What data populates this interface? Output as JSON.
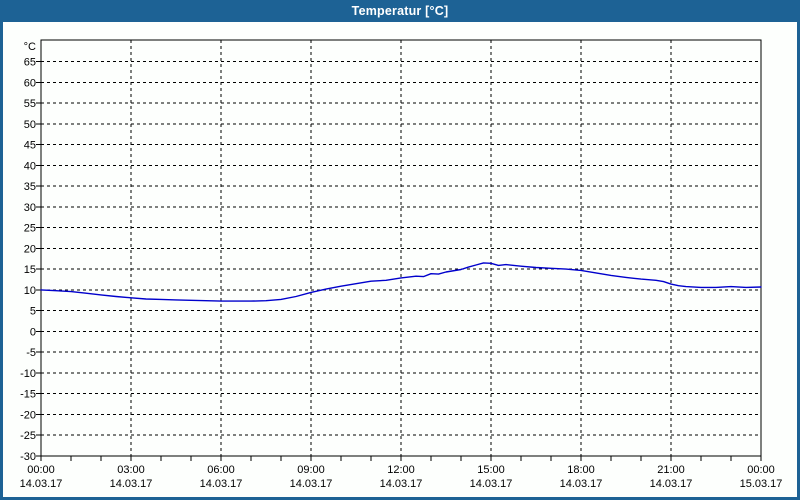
{
  "window": {
    "title": "Temperatur [°C]"
  },
  "colors": {
    "titlebar": "#1d6295",
    "window_border": "#1d6295",
    "title_text": "#ffffff",
    "background": "#fdfffd",
    "axis": "#000000",
    "grid": "#000000",
    "line": "#0000cc"
  },
  "chart_data": {
    "type": "line",
    "title": "Temperatur [°C]",
    "unit": "°C",
    "grid": true,
    "legend": "none",
    "x_axis": {
      "range_hours": [
        0,
        24
      ],
      "tick_hours": [
        0,
        3,
        6,
        9,
        12,
        15,
        18,
        21,
        24
      ],
      "minor_tick_every_hours": 1,
      "tick_labels": [
        {
          "time": "00:00",
          "date": "14.03.17"
        },
        {
          "time": "03:00",
          "date": "14.03.17"
        },
        {
          "time": "06:00",
          "date": "14.03.17"
        },
        {
          "time": "09:00",
          "date": "14.03.17"
        },
        {
          "time": "12:00",
          "date": "14.03.17"
        },
        {
          "time": "15:00",
          "date": "14.03.17"
        },
        {
          "time": "18:00",
          "date": "14.03.17"
        },
        {
          "time": "21:00",
          "date": "14.03.17"
        },
        {
          "time": "00:00",
          "date": "15.03.17"
        }
      ]
    },
    "y_axis": {
      "unit_label": "°C",
      "range": [
        -30,
        70
      ],
      "tick_step": 5,
      "tick_values": [
        65,
        60,
        55,
        50,
        45,
        40,
        35,
        30,
        25,
        20,
        15,
        10,
        5,
        0,
        -5,
        -10,
        -15,
        -20,
        -25,
        -30
      ]
    },
    "series": [
      {
        "name": "Temperatur",
        "color": "#0000cc",
        "points": [
          [
            0,
            10.0
          ],
          [
            0.5,
            9.8
          ],
          [
            1,
            9.6
          ],
          [
            1.5,
            9.2
          ],
          [
            2,
            8.8
          ],
          [
            2.5,
            8.4
          ],
          [
            3,
            8.1
          ],
          [
            3.5,
            7.8
          ],
          [
            4,
            7.7
          ],
          [
            4.5,
            7.6
          ],
          [
            5,
            7.5
          ],
          [
            5.5,
            7.4
          ],
          [
            6,
            7.3
          ],
          [
            6.5,
            7.3
          ],
          [
            7,
            7.3
          ],
          [
            7.5,
            7.4
          ],
          [
            8,
            7.7
          ],
          [
            8.5,
            8.4
          ],
          [
            9,
            9.4
          ],
          [
            9.5,
            10.2
          ],
          [
            10,
            10.9
          ],
          [
            10.5,
            11.5
          ],
          [
            11,
            12.1
          ],
          [
            11.5,
            12.3
          ],
          [
            12,
            12.9
          ],
          [
            12.5,
            13.3
          ],
          [
            12.75,
            13.2
          ],
          [
            13,
            13.9
          ],
          [
            13.25,
            13.8
          ],
          [
            13.5,
            14.3
          ],
          [
            14,
            14.9
          ],
          [
            14.25,
            15.5
          ],
          [
            14.5,
            16.0
          ],
          [
            14.75,
            16.5
          ],
          [
            15,
            16.4
          ],
          [
            15.25,
            15.9
          ],
          [
            15.5,
            16.1
          ],
          [
            16,
            15.7
          ],
          [
            16.5,
            15.4
          ],
          [
            17,
            15.2
          ],
          [
            17.5,
            15.0
          ],
          [
            18,
            14.7
          ],
          [
            18.5,
            14.1
          ],
          [
            19,
            13.5
          ],
          [
            19.5,
            13.0
          ],
          [
            20,
            12.6
          ],
          [
            20.5,
            12.3
          ],
          [
            20.75,
            12.0
          ],
          [
            21,
            11.4
          ],
          [
            21.25,
            11.0
          ],
          [
            21.5,
            10.8
          ],
          [
            22,
            10.6
          ],
          [
            22.5,
            10.6
          ],
          [
            23,
            10.8
          ],
          [
            23.5,
            10.6
          ],
          [
            24,
            10.7
          ]
        ]
      }
    ]
  }
}
